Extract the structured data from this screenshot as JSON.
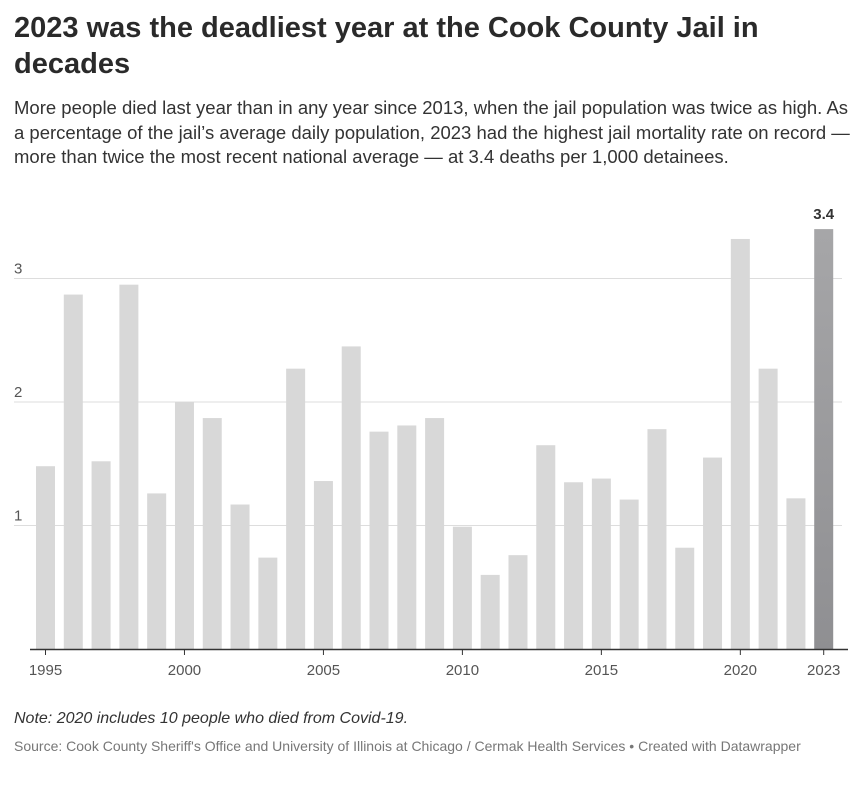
{
  "header": {
    "title": "2023 was the deadliest year at the Cook County Jail in decades",
    "subtitle": "More people died last year than in any year since 2013, when the jail population was twice as high. As a percentage of the jail’s average daily population, 2023 had the highest jail mortality rate on record — more than twice the most recent national average — at 3.4 deaths per 1,000 detainees."
  },
  "chart_data": {
    "type": "bar",
    "categories": [
      "1995",
      "1996",
      "1997",
      "1998",
      "1999",
      "2000",
      "2001",
      "2002",
      "2003",
      "2004",
      "2005",
      "2006",
      "2007",
      "2008",
      "2009",
      "2010",
      "2011",
      "2012",
      "2013",
      "2014",
      "2015",
      "2016",
      "2017",
      "2018",
      "2019",
      "2020",
      "2021",
      "2022",
      "2023"
    ],
    "values": [
      1.48,
      2.87,
      1.52,
      2.95,
      1.26,
      2.0,
      1.87,
      1.17,
      0.74,
      2.27,
      1.36,
      2.45,
      1.76,
      1.81,
      1.87,
      0.99,
      0.6,
      0.76,
      1.65,
      1.35,
      1.38,
      1.21,
      1.78,
      0.82,
      1.55,
      3.32,
      2.27,
      1.22,
      3.4
    ],
    "x_tick_labels": [
      "1995",
      "2000",
      "2005",
      "2010",
      "2015",
      "2020",
      "2023"
    ],
    "y_ticks": [
      1,
      2,
      3
    ],
    "ylim": [
      0,
      3.4
    ],
    "xlabel": "",
    "ylabel": "",
    "grid": true,
    "highlight": {
      "category": "2023",
      "label": "3.4"
    },
    "colors": {
      "bar": "#d8d8d8",
      "highlight_top": "#a6a6a8",
      "highlight_bottom": "#8f8f92",
      "gridline": "#dddddd",
      "baseline": "#333333",
      "tick_text": "#555555",
      "highlight_label": "#333333"
    }
  },
  "footer": {
    "note": "Note: 2020 includes 10 people who died from Covid-19.",
    "source": "Source: Cook County Sheriff's Office and University of Illinois at Chicago / Cermak Health Services • Created with Datawrapper"
  }
}
